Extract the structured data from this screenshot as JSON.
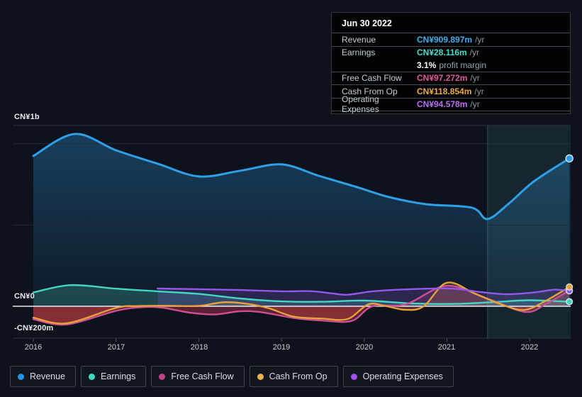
{
  "tooltip": {
    "date": "Jun 30 2022",
    "rows": [
      {
        "label": "Revenue",
        "value": "CN¥909.897m",
        "suffix": "/yr",
        "color": "#3fb1f2"
      },
      {
        "label": "Earnings",
        "value": "CN¥28.116m",
        "suffix": "/yr",
        "color": "#4adcc9"
      },
      {
        "label": "Free Cash Flow",
        "value": "CN¥97.272m",
        "suffix": "/yr",
        "color": "#e1589d"
      },
      {
        "label": "Cash From Op",
        "value": "CN¥118.854m",
        "suffix": "/yr",
        "color": "#edaa45"
      },
      {
        "label": "Operating Expenses",
        "value": "CN¥94.578m",
        "suffix": "/yr",
        "color": "#c06df5"
      }
    ],
    "margin_value": "3.1%",
    "margin_text": "profit margin"
  },
  "axis": {
    "y_labels": [
      "CN¥1b",
      "CN¥0",
      "-CN¥200m"
    ],
    "x_labels": [
      "2016",
      "2017",
      "2018",
      "2019",
      "2020",
      "2021",
      "2022"
    ]
  },
  "legend": [
    {
      "label": "Revenue",
      "color": "#1f97e4"
    },
    {
      "label": "Earnings",
      "color": "#3fd8c3"
    },
    {
      "label": "Free Cash Flow",
      "color": "#c2417e"
    },
    {
      "label": "Cash From Op",
      "color": "#e9b04e"
    },
    {
      "label": "Operating Expenses",
      "color": "#a44ff0"
    }
  ],
  "chart_data": {
    "type": "area",
    "x_unit": "year",
    "y_unit": "CN¥ millions",
    "ylim": [
      -230,
      1110
    ],
    "y_ticks": [
      {
        "label": "CN¥1b",
        "value": 1000
      },
      {
        "label": "CN¥0",
        "value": 0
      },
      {
        "label": "-CN¥200m",
        "value": -200
      }
    ],
    "x_ticks": [
      2016,
      2017,
      2018,
      2019,
      2020,
      2021,
      2022
    ],
    "highlight_x_range": [
      2021.49,
      2022.5
    ],
    "grid": true,
    "legend_position": "bottom",
    "series": [
      {
        "name": "Revenue",
        "color": "#2f9fe6",
        "points": [
          [
            2016.0,
            925
          ],
          [
            2016.5,
            1060
          ],
          [
            2017.0,
            960
          ],
          [
            2017.5,
            878
          ],
          [
            2018.0,
            799
          ],
          [
            2018.5,
            834
          ],
          [
            2019.0,
            873
          ],
          [
            2019.45,
            803
          ],
          [
            2019.9,
            735
          ],
          [
            2020.3,
            672
          ],
          [
            2020.75,
            628
          ],
          [
            2021.3,
            607
          ],
          [
            2021.49,
            537
          ],
          [
            2021.75,
            633
          ],
          [
            2022.05,
            768
          ],
          [
            2022.48,
            909.897
          ]
        ]
      },
      {
        "name": "Earnings",
        "color": "#45d6c2",
        "points": [
          [
            2016.0,
            85
          ],
          [
            2016.45,
            130
          ],
          [
            2017.0,
            108
          ],
          [
            2017.5,
            92
          ],
          [
            2018.0,
            76
          ],
          [
            2018.5,
            48
          ],
          [
            2019.0,
            30
          ],
          [
            2019.5,
            28
          ],
          [
            2020.0,
            35
          ],
          [
            2020.6,
            17
          ],
          [
            2021.1,
            15
          ],
          [
            2021.6,
            27
          ],
          [
            2022.0,
            37
          ],
          [
            2022.48,
            28.116
          ]
        ]
      },
      {
        "name": "Free Cash Flow",
        "color": "#cf4f92",
        "points": [
          [
            2016.0,
            -80
          ],
          [
            2016.4,
            -112
          ],
          [
            2017.0,
            -28
          ],
          [
            2017.3,
            -6
          ],
          [
            2017.55,
            -8
          ],
          [
            2017.9,
            -40
          ],
          [
            2018.2,
            -50
          ],
          [
            2018.5,
            -31
          ],
          [
            2018.75,
            -36
          ],
          [
            2019.15,
            -72
          ],
          [
            2019.5,
            -88
          ],
          [
            2019.85,
            -90
          ],
          [
            2020.1,
            0
          ],
          [
            2020.5,
            12
          ],
          [
            2021.0,
            126
          ],
          [
            2021.5,
            44
          ],
          [
            2021.95,
            -35
          ],
          [
            2022.2,
            15
          ],
          [
            2022.48,
            97.272
          ]
        ]
      },
      {
        "name": "Cash From Op",
        "color": "#e7a23c",
        "points": [
          [
            2016.0,
            -70
          ],
          [
            2016.4,
            -105
          ],
          [
            2017.0,
            -10
          ],
          [
            2017.25,
            1
          ],
          [
            2017.6,
            3
          ],
          [
            2018.0,
            2
          ],
          [
            2018.3,
            25
          ],
          [
            2018.6,
            14
          ],
          [
            2018.85,
            -13
          ],
          [
            2019.15,
            -64
          ],
          [
            2019.5,
            -76
          ],
          [
            2019.8,
            -78
          ],
          [
            2020.05,
            12
          ],
          [
            2020.25,
            2
          ],
          [
            2020.5,
            -22
          ],
          [
            2020.72,
            0
          ],
          [
            2021.0,
            145
          ],
          [
            2021.35,
            75
          ],
          [
            2021.72,
            0
          ],
          [
            2021.95,
            -22
          ],
          [
            2022.2,
            35
          ],
          [
            2022.48,
            118.854
          ]
        ]
      },
      {
        "name": "Operating Expenses",
        "color": "#9457ea",
        "points": [
          [
            2017.5,
            109
          ],
          [
            2018.0,
            105
          ],
          [
            2018.5,
            100
          ],
          [
            2019.0,
            92
          ],
          [
            2019.35,
            93
          ],
          [
            2019.6,
            80
          ],
          [
            2019.8,
            71
          ],
          [
            2020.1,
            92
          ],
          [
            2020.5,
            104
          ],
          [
            2021.05,
            109
          ],
          [
            2021.4,
            88
          ],
          [
            2021.72,
            74
          ],
          [
            2022.05,
            85
          ],
          [
            2022.3,
            102
          ],
          [
            2022.48,
            94.578
          ]
        ]
      }
    ]
  }
}
